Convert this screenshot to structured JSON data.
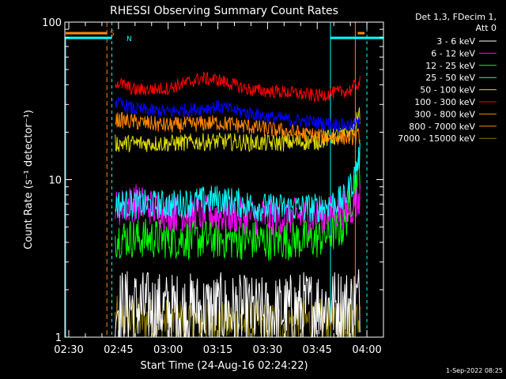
{
  "chart_data": {
    "type": "line",
    "title": "RHESSI Observing Summary Count Rates",
    "xlabel": "Start Time (24-Aug-16 02:24:22)",
    "ylabel": "Count Rate (s⁻¹ detector⁻¹)",
    "y_scale": "log",
    "ylim": [
      1,
      100
    ],
    "xlim_minutes": [
      150,
      245
    ],
    "y_tick_labels": [
      {
        "value": 1,
        "label": "1"
      },
      {
        "value": 10,
        "label": "10"
      },
      {
        "value": 100,
        "label": "100"
      }
    ],
    "x_ticks": [
      {
        "minutes": 150,
        "label": "02:30"
      },
      {
        "minutes": 165,
        "label": "02:45"
      },
      {
        "minutes": 180,
        "label": "03:00"
      },
      {
        "minutes": 195,
        "label": "03:15"
      },
      {
        "minutes": 210,
        "label": "03:30"
      },
      {
        "minutes": 225,
        "label": "03:45"
      },
      {
        "minutes": 240,
        "label": "04:00"
      }
    ],
    "data_span_minutes": [
      164,
      238
    ],
    "legend": {
      "placement": "top-right",
      "header": [
        "Det 1,3, FDecim 1,",
        "Att 0"
      ]
    },
    "series": [
      {
        "name": "3 - 6 keV",
        "color": "#ffffff",
        "points": [
          [
            164,
            1.6
          ],
          [
            180,
            1.5
          ],
          [
            195,
            1.5
          ],
          [
            210,
            1.4
          ],
          [
            225,
            1.6
          ],
          [
            235,
            1.6
          ],
          [
            238,
            1.8
          ]
        ]
      },
      {
        "name": "6 - 12 keV",
        "color": "#ff00ff",
        "points": [
          [
            164,
            6.5
          ],
          [
            170,
            7.2
          ],
          [
            180,
            6.2
          ],
          [
            195,
            6.0
          ],
          [
            210,
            5.8
          ],
          [
            225,
            5.9
          ],
          [
            235,
            6.6
          ],
          [
            238,
            7.6
          ]
        ]
      },
      {
        "name": "12 - 25 keV",
        "color": "#00ff00",
        "points": [
          [
            164,
            4.3
          ],
          [
            180,
            4.2
          ],
          [
            195,
            4.2
          ],
          [
            210,
            4.1
          ],
          [
            225,
            4.2
          ],
          [
            233,
            5.0
          ],
          [
            236,
            8.5
          ],
          [
            238,
            12
          ]
        ]
      },
      {
        "name": "25 - 50 keV",
        "color": "#00ffff",
        "points": [
          [
            164,
            7.0
          ],
          [
            180,
            6.9
          ],
          [
            195,
            7.5
          ],
          [
            210,
            6.6
          ],
          [
            225,
            6.6
          ],
          [
            233,
            7.5
          ],
          [
            236,
            10
          ],
          [
            238,
            15
          ]
        ]
      },
      {
        "name": "50 - 100 keV",
        "color": "#dddd00",
        "points": [
          [
            164,
            17
          ],
          [
            180,
            17
          ],
          [
            195,
            17.5
          ],
          [
            210,
            17
          ],
          [
            225,
            17.5
          ],
          [
            235,
            20
          ],
          [
            238,
            26
          ]
        ]
      },
      {
        "name": "100 - 300 keV",
        "color": "#ff0000",
        "points": [
          [
            164,
            42
          ],
          [
            170,
            37
          ],
          [
            180,
            38
          ],
          [
            190,
            44
          ],
          [
            195,
            43
          ],
          [
            205,
            37
          ],
          [
            215,
            36
          ],
          [
            225,
            34
          ],
          [
            235,
            37
          ],
          [
            238,
            42
          ]
        ]
      },
      {
        "name": "300 - 800 keV",
        "color": "#ff8800",
        "points": [
          [
            164,
            24
          ],
          [
            180,
            22
          ],
          [
            195,
            23
          ],
          [
            210,
            21
          ],
          [
            225,
            19
          ],
          [
            235,
            18.5
          ],
          [
            238,
            19
          ]
        ]
      },
      {
        "name": "800 - 7000 keV",
        "color": "#ff8800",
        "points": [
          [
            164,
            24
          ],
          [
            180,
            22
          ],
          [
            195,
            23
          ],
          [
            210,
            21
          ],
          [
            225,
            19
          ],
          [
            235,
            18.5
          ],
          [
            238,
            19
          ]
        ]
      },
      {
        "name": "7000 - 15000 keV",
        "color": "#887700",
        "points": [
          [
            164,
            1.3
          ],
          [
            180,
            1.25
          ],
          [
            195,
            1.25
          ],
          [
            210,
            1.2
          ],
          [
            225,
            1.25
          ],
          [
            238,
            1.3
          ]
        ]
      },
      {
        "name": "",
        "color": "#0000ff",
        "points": [
          [
            164,
            31
          ],
          [
            170,
            28
          ],
          [
            180,
            27
          ],
          [
            195,
            29
          ],
          [
            210,
            25
          ],
          [
            225,
            23
          ],
          [
            235,
            22
          ],
          [
            238,
            23
          ]
        ]
      }
    ],
    "annotations": [
      {
        "label": "S",
        "color": "#ff8800",
        "minutes": 161
      },
      {
        "label": "N",
        "color": "#00ffff",
        "minutes": 166
      }
    ],
    "footer": "1-Sep-2022 08:25"
  }
}
